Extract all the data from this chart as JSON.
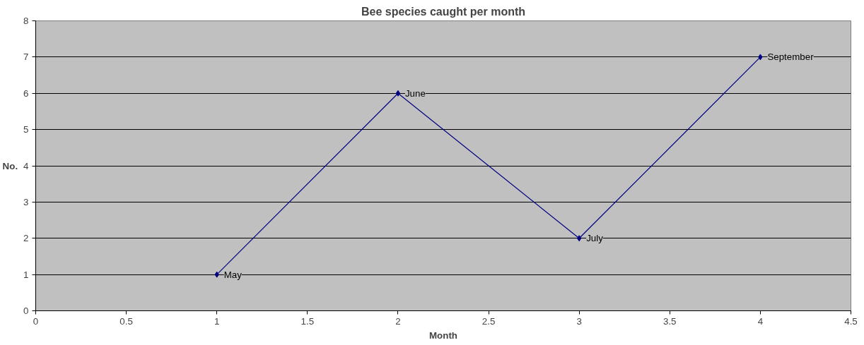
{
  "chart_data": {
    "type": "line",
    "title": "Bee species caught per month",
    "xlabel": "Month",
    "ylabel": "No.",
    "x": [
      1,
      2,
      3,
      4
    ],
    "series": [
      {
        "color": "#000080",
        "values": [
          1,
          6,
          2,
          7
        ]
      }
    ],
    "annotations": [
      {
        "text": "May",
        "x": 1,
        "y": 1
      },
      {
        "text": "June",
        "x": 2,
        "y": 6
      },
      {
        "text": "July",
        "x": 3,
        "y": 2
      },
      {
        "text": "September",
        "x": 4,
        "y": 7
      }
    ],
    "xlim": [
      0,
      4.5
    ],
    "xticks": [
      0,
      0.5,
      1,
      1.5,
      2,
      2.5,
      3,
      3.5,
      4,
      4.5
    ],
    "ylim": [
      0,
      8
    ],
    "yticks": [
      0,
      1,
      2,
      3,
      4,
      5,
      6,
      7,
      8
    ],
    "grid": "y",
    "marker": "diamond",
    "line_style": "solid"
  }
}
